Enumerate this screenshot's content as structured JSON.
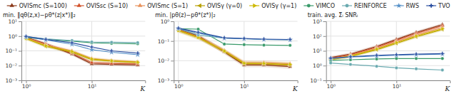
{
  "chart_data": [
    {
      "type": "line",
      "log": true,
      "grid": true,
      "legend": "top",
      "xlabel": "K",
      "ylabel": "min. ‖qθ(z,x)−pθ*(z|x*)‖₂",
      "x": [
        1,
        2,
        5,
        10,
        20,
        50
      ],
      "xlim": [
        0.85,
        65
      ],
      "xticks": [
        {
          "value": 1,
          "label": "10⁰"
        },
        {
          "value": 10,
          "label": "10¹"
        }
      ],
      "ylim": [
        0.001,
        10
      ],
      "yticks": [
        {
          "value": 0.001,
          "label": "10⁻³"
        },
        {
          "value": 0.01,
          "label": "10⁻²"
        },
        {
          "value": 0.1,
          "label": "10⁻¹"
        },
        {
          "value": 1,
          "label": "10⁰"
        },
        {
          "value": 10,
          "label": "10¹"
        }
      ],
      "series": [
        {
          "name": "OVISmc (S=100)",
          "color": "#8B3A1A",
          "marker": "triangle-up",
          "values": [
            0.82,
            0.3,
            0.06,
            0.013,
            0.012,
            0.011
          ],
          "lower": [
            0.6396,
            0.234,
            0.0468,
            0.01014,
            0.00936,
            0.00858
          ],
          "upper": [
            1.0496,
            0.384,
            0.0768,
            0.01664,
            0.01536,
            0.01408
          ]
        },
        {
          "name": "OVISsc (S=10)",
          "color": "#D2522A",
          "marker": "triangle-up",
          "values": [
            0.8,
            0.28,
            0.07,
            0.016,
            0.014,
            0.013
          ],
          "lower": [
            0.624,
            0.2184,
            0.0546,
            0.01248,
            0.01092,
            0.01014
          ],
          "upper": [
            1.024,
            0.3584,
            0.0896,
            0.02048,
            0.01792,
            0.01664
          ]
        },
        {
          "name": "OVISmc (S=1)",
          "color": "#E8915A",
          "marker": "triangle-up",
          "values": [
            0.75,
            0.26,
            0.1,
            0.03,
            0.022,
            0.018
          ],
          "lower": [
            0.585,
            0.2028,
            0.078,
            0.0234,
            0.01716,
            0.01404
          ],
          "upper": [
            0.96,
            0.3328,
            0.128,
            0.0384,
            0.02816,
            0.02304
          ]
        },
        {
          "name": "OVISγ (γ=0)",
          "color": "#B8A000",
          "marker": "triangle-left",
          "values": [
            0.68,
            0.2,
            0.08,
            0.025,
            0.02,
            0.016
          ],
          "lower": [
            0.5304,
            0.156,
            0.0624,
            0.0195,
            0.0156,
            0.01248
          ],
          "upper": [
            0.8704,
            0.256,
            0.1024,
            0.032,
            0.0256,
            0.02048
          ]
        },
        {
          "name": "OVISγ (γ=1)",
          "color": "#CDB800",
          "marker": "triangle-right",
          "values": [
            0.7,
            0.22,
            0.09,
            0.028,
            0.021,
            0.017
          ],
          "lower": [
            0.546,
            0.1716,
            0.0702,
            0.02184,
            0.01638,
            0.01326
          ],
          "upper": [
            0.896,
            0.2816,
            0.1152,
            0.03584,
            0.02688,
            0.02176
          ]
        },
        {
          "name": "VIMCO",
          "color": "#3A9A6A",
          "marker": "circle",
          "values": [
            0.8,
            0.6,
            0.45,
            0.35,
            0.32,
            0.3
          ]
        },
        {
          "name": "REINFORCE",
          "color": "#6AAAB0",
          "marker": "circle",
          "values": [
            0.9,
            0.65,
            0.5,
            0.4,
            0.38,
            0.36
          ]
        },
        {
          "name": "RWS",
          "color": "#5590C8",
          "marker": "star",
          "values": [
            0.92,
            0.55,
            0.28,
            0.12,
            0.08,
            0.055
          ]
        },
        {
          "name": "TVO",
          "color": "#2B4FA0",
          "marker": "plus",
          "values": [
            0.95,
            0.6,
            0.35,
            0.18,
            0.1,
            0.07
          ]
        }
      ]
    },
    {
      "type": "line",
      "log": true,
      "grid": true,
      "xlabel": "K",
      "ylabel": "min. |pθ(z)−pθ*(z*)|₂",
      "x": [
        1,
        2,
        5,
        10,
        20,
        50
      ],
      "xlim": [
        0.85,
        65
      ],
      "xticks": [
        {
          "value": 1,
          "label": "10⁰"
        },
        {
          "value": 10,
          "label": "10¹"
        }
      ],
      "ylim": [
        0.001,
        1
      ],
      "yticks": [
        {
          "value": 0.001,
          "label": "10⁻³"
        },
        {
          "value": 0.01,
          "label": "10⁻²"
        },
        {
          "value": 0.1,
          "label": "10⁻¹"
        },
        {
          "value": 1,
          "label": "10⁰"
        }
      ],
      "series": [
        {
          "color": "#8B3A1A",
          "marker": "triangle-up",
          "values": [
            0.4,
            0.18,
            0.028,
            0.006,
            0.006,
            0.005
          ],
          "lower": [
            0.312,
            0.1404,
            0.02184,
            0.00468,
            0.00468,
            0.0039
          ],
          "upper": [
            0.512,
            0.2304,
            0.03584,
            0.00768,
            0.00768,
            0.0064
          ]
        },
        {
          "color": "#D2522A",
          "marker": "triangle-up",
          "values": [
            0.38,
            0.17,
            0.03,
            0.007,
            0.007,
            0.006
          ],
          "lower": [
            0.2964,
            0.1326,
            0.0234,
            0.00546,
            0.00546,
            0.00468
          ],
          "upper": [
            0.4864,
            0.2176,
            0.0384,
            0.00896,
            0.00896,
            0.00768
          ]
        },
        {
          "color": "#E8915A",
          "marker": "triangle-up",
          "values": [
            0.36,
            0.16,
            0.033,
            0.008,
            0.008,
            0.007
          ],
          "lower": [
            0.2808,
            0.1248,
            0.02574,
            0.00624,
            0.00624,
            0.00546
          ],
          "upper": [
            0.4608,
            0.2048,
            0.04224,
            0.01024,
            0.01024,
            0.00896
          ]
        },
        {
          "color": "#B8A000",
          "marker": "triangle-left",
          "values": [
            0.34,
            0.15,
            0.03,
            0.007,
            0.007,
            0.006
          ],
          "lower": [
            0.2652,
            0.117,
            0.0234,
            0.00546,
            0.00546,
            0.00468
          ],
          "upper": [
            0.4352,
            0.192,
            0.0384,
            0.00896,
            0.00896,
            0.00768
          ]
        },
        {
          "color": "#CDB800",
          "marker": "triangle-right",
          "values": [
            0.35,
            0.155,
            0.031,
            0.0075,
            0.0072,
            0.0065
          ],
          "lower": [
            0.273,
            0.1209,
            0.02418,
            0.00585,
            0.005616,
            0.00507
          ],
          "upper": [
            0.448,
            0.1984,
            0.03968,
            0.0096,
            0.009216,
            0.00832
          ]
        },
        {
          "color": "#3A9A6A",
          "marker": "circle",
          "values": [
            0.42,
            0.4,
            0.07,
            0.065,
            0.062,
            0.06
          ]
        },
        {
          "color": "#6AAAB0",
          "marker": "circle",
          "values": [
            0.43,
            0.2,
            0.14,
            0.13,
            0.12,
            0.115
          ]
        },
        {
          "color": "#5590C8",
          "marker": "star",
          "values": [
            0.44,
            0.25,
            0.14,
            0.13,
            0.12,
            0.115
          ]
        },
        {
          "color": "#2B4FA0",
          "marker": "plus",
          "values": [
            0.45,
            0.28,
            0.145,
            0.135,
            0.125,
            0.12
          ]
        }
      ]
    },
    {
      "type": "line",
      "log": true,
      "grid": true,
      "xlabel": "K",
      "ylabel": "train. avg. Σ̃ᵢ SNRᵢ",
      "x": [
        1,
        2,
        5,
        10,
        20,
        50
      ],
      "xlim": [
        0.85,
        65
      ],
      "xticks": [
        {
          "value": 1,
          "label": "10⁰"
        },
        {
          "value": 10,
          "label": "10¹"
        }
      ],
      "ylim": [
        0.1,
        1000
      ],
      "yticks": [
        {
          "value": 0.1,
          "label": "10⁻¹"
        },
        {
          "value": 1,
          "label": "10⁰"
        },
        {
          "value": 10,
          "label": "10¹"
        },
        {
          "value": 100,
          "label": "10²"
        },
        {
          "value": 1000,
          "label": "10³"
        }
      ],
      "series": [
        {
          "color": "#8B3A1A",
          "marker": "triangle-up",
          "values": [
            3.5,
            6.0,
            20,
            60,
            180,
            600
          ],
          "lower": [
            2.73,
            4.68,
            15.6,
            46.8,
            140.4,
            468
          ],
          "upper": [
            4.48,
            7.68,
            25.6,
            76.8,
            230.4,
            768
          ]
        },
        {
          "color": "#D2522A",
          "marker": "triangle-up",
          "values": [
            3.2,
            5.5,
            18,
            52,
            155,
            500
          ],
          "lower": [
            2.496,
            4.29,
            14.04,
            40.56,
            120.9,
            390
          ],
          "upper": [
            4.096,
            7.04,
            23.04,
            66.56,
            198.4,
            640
          ]
        },
        {
          "color": "#E8915A",
          "marker": "triangle-up",
          "values": [
            2.8,
            4.8,
            15,
            42,
            120,
            380
          ],
          "lower": [
            2.184,
            3.744,
            11.7,
            32.76,
            93.6,
            296.4
          ],
          "upper": [
            3.584,
            6.144,
            19.2,
            53.76,
            153.6,
            486.4
          ]
        },
        {
          "color": "#B8A000",
          "marker": "triangle-left",
          "values": [
            2.5,
            4.2,
            12,
            32,
            90,
            280
          ],
          "lower": [
            1.95,
            3.276,
            9.36,
            24.96,
            70.2,
            218.4
          ],
          "upper": [
            3.2,
            5.376,
            15.36,
            40.96,
            115.2,
            358.4
          ]
        },
        {
          "color": "#CDB800",
          "marker": "triangle-right",
          "values": [
            2.7,
            4.5,
            13,
            36,
            100,
            310
          ],
          "lower": [
            2.106,
            3.51,
            10.14,
            28.08,
            78,
            241.8
          ],
          "upper": [
            3.456,
            5.76,
            16.64,
            46.08,
            128,
            396.8
          ]
        },
        {
          "color": "#3A9A6A",
          "marker": "circle",
          "values": [
            2.2,
            2.5,
            2.8,
            3.0,
            3.0,
            3.0
          ]
        },
        {
          "color": "#6AAAB0",
          "marker": "circle",
          "values": [
            1.5,
            1.2,
            0.9,
            0.7,
            0.6,
            0.5
          ]
        },
        {
          "color": "#5590C8",
          "marker": "star",
          "values": [
            3.0,
            3.8,
            4.5,
            5.0,
            5.5,
            6.0
          ]
        },
        {
          "color": "#2B4FA0",
          "marker": "plus",
          "values": [
            3.2,
            4.0,
            5.0,
            5.5,
            6.0,
            6.5
          ]
        }
      ]
    }
  ]
}
